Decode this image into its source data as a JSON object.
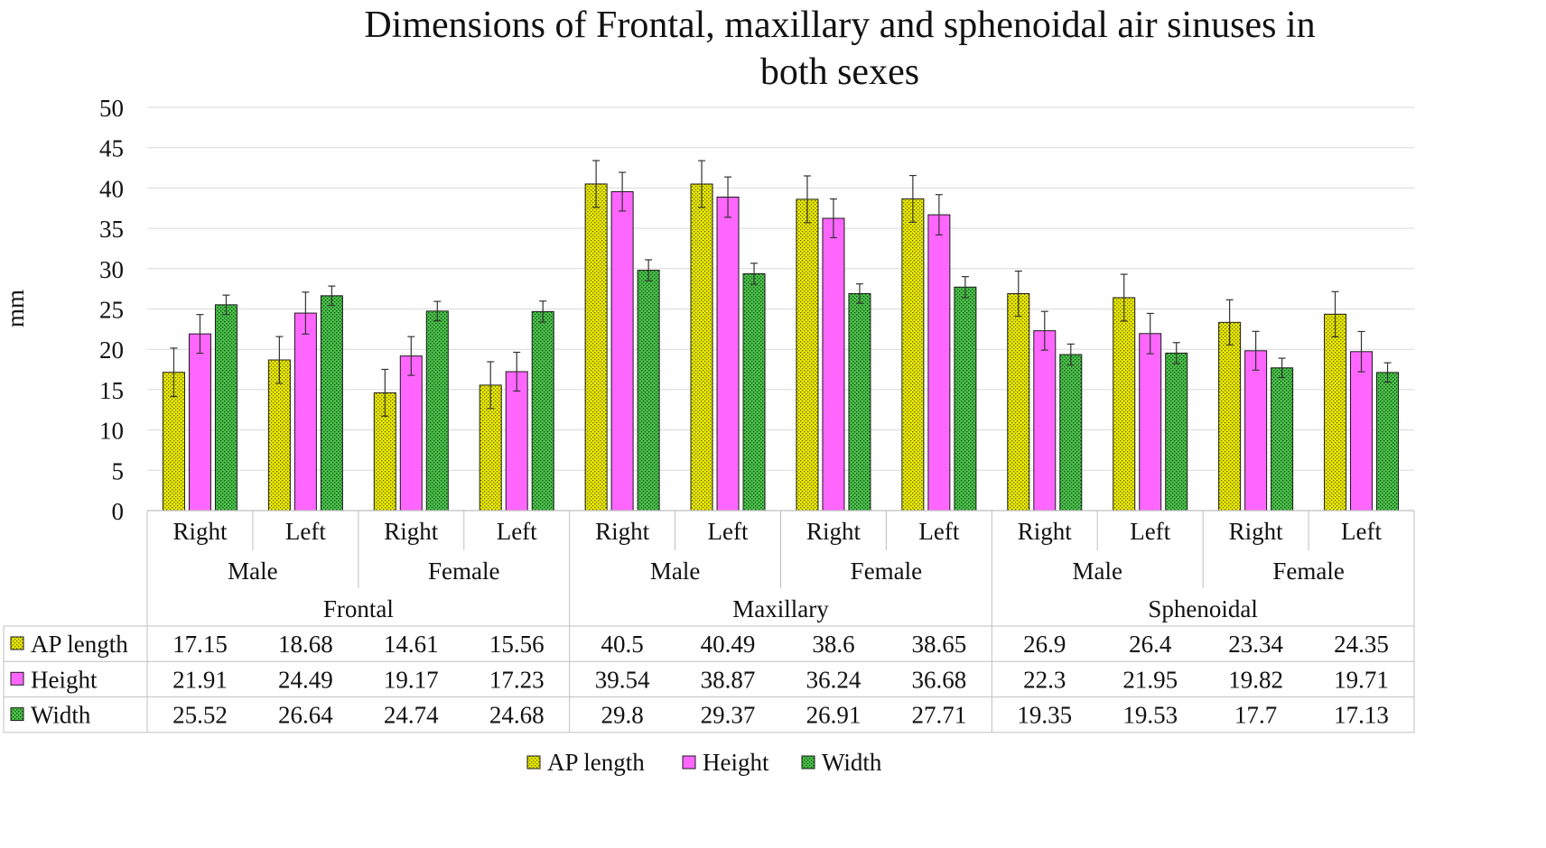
{
  "chart_data": {
    "type": "bar",
    "title_line1": "Dimensions of Frontal, maxillary and sphenoidal air sinuses in",
    "title_line2": "both sexes",
    "ylabel": "mm",
    "ylim": [
      0,
      50
    ],
    "yticks": [
      "0",
      "5",
      "10",
      "15",
      "20",
      "25",
      "30",
      "35",
      "40",
      "45",
      "50"
    ],
    "grid": true,
    "legend_position": "bottom",
    "level1_labels": [
      "Right",
      "Left",
      "Right",
      "Left",
      "Right",
      "Left",
      "Right",
      "Left",
      "Right",
      "Left",
      "Right",
      "Left"
    ],
    "level2_labels": [
      "Male",
      "Female",
      "Male",
      "Female",
      "Male",
      "Female"
    ],
    "level3_labels": [
      "Frontal",
      "Maxillary",
      "Sphenoidal"
    ],
    "series": [
      {
        "name": "AP length",
        "color": "#e6e600",
        "pattern": "dots",
        "values": [
          17.15,
          18.68,
          14.61,
          15.56,
          40.5,
          40.49,
          38.6,
          38.65,
          26.9,
          26.4,
          23.34,
          24.35
        ],
        "value_labels": [
          "17.15",
          "18.68",
          "14.61",
          "15.56",
          "40.5",
          "40.49",
          "38.6",
          "38.65",
          "26.9",
          "26.4",
          "23.34",
          "24.35"
        ],
        "errors": [
          3.0,
          2.9,
          2.9,
          2.9,
          2.9,
          2.9,
          2.9,
          2.9,
          2.8,
          2.9,
          2.8,
          2.8
        ]
      },
      {
        "name": "Height",
        "color": "#ff66ff",
        "pattern": "solid",
        "values": [
          21.91,
          24.49,
          19.17,
          17.23,
          39.54,
          38.87,
          36.24,
          36.68,
          22.3,
          21.95,
          19.82,
          19.71
        ],
        "value_labels": [
          "21.91",
          "24.49",
          "19.17",
          "17.23",
          "39.54",
          "38.87",
          "36.24",
          "36.68",
          "22.3",
          "21.95",
          "19.82",
          "19.71"
        ],
        "errors": [
          2.4,
          2.6,
          2.4,
          2.4,
          2.4,
          2.5,
          2.4,
          2.5,
          2.4,
          2.5,
          2.4,
          2.5
        ]
      },
      {
        "name": "Width",
        "color": "#44b844",
        "pattern": "dots",
        "values": [
          25.52,
          26.64,
          24.74,
          24.68,
          29.8,
          29.37,
          26.91,
          27.71,
          19.35,
          19.53,
          17.7,
          17.13
        ],
        "value_labels": [
          "25.52",
          "26.64",
          "24.74",
          "24.68",
          "29.8",
          "29.37",
          "26.91",
          "27.71",
          "19.35",
          "19.53",
          "17.7",
          "17.13"
        ],
        "errors": [
          1.2,
          1.2,
          1.2,
          1.3,
          1.3,
          1.3,
          1.2,
          1.3,
          1.3,
          1.3,
          1.2,
          1.2
        ]
      }
    ]
  }
}
